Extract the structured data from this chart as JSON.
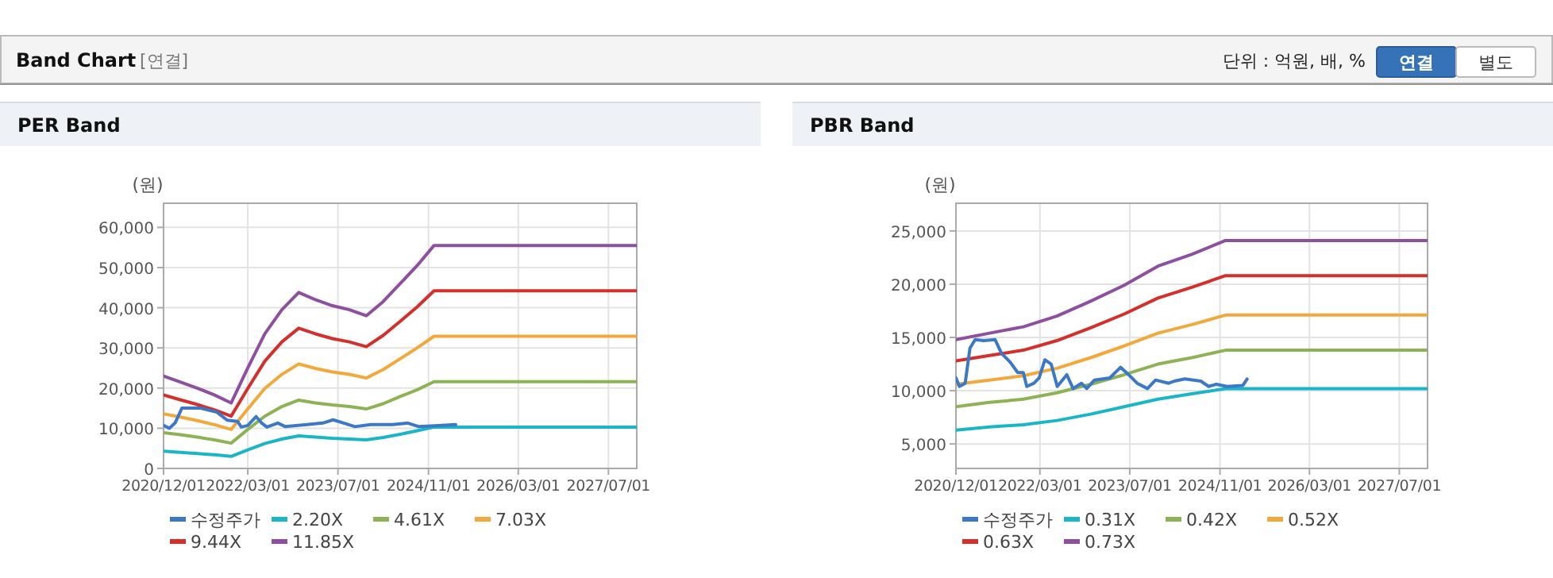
{
  "chart_data": [
    {
      "type": "other",
      "title": "Band Chart",
      "subtitle": "[연결]",
      "annotations": [
        "단위 : 억원, 배, %",
        "연결",
        "별도"
      ]
    },
    {
      "type": "line",
      "title": "PER Band",
      "ylabel": "(원)",
      "grid": true,
      "legend": "bottom",
      "marker": "none",
      "line_style": "solid",
      "xlim": [
        "2020-12-01",
        "2027-12-01"
      ],
      "xticks": [
        {
          "value": "2020-12-01",
          "label": "2020/12/01"
        },
        {
          "value": "2022-03-01",
          "label": "2022/03/01"
        },
        {
          "value": "2023-07-01",
          "label": "2023/07/01"
        },
        {
          "value": "2024-11-01",
          "label": "2024/11/01"
        },
        {
          "value": "2026-03-01",
          "label": "2026/03/01"
        },
        {
          "value": "2027-07-01",
          "label": "2027/07/01"
        }
      ],
      "ylim": [
        0,
        66000
      ],
      "yticks": [
        {
          "value": 0,
          "label": "0"
        },
        {
          "value": 10000,
          "label": "10,000"
        },
        {
          "value": 20000,
          "label": "20,000"
        },
        {
          "value": 30000,
          "label": "30,000"
        },
        {
          "value": 40000,
          "label": "40,000"
        },
        {
          "value": 50000,
          "label": "50,000"
        },
        {
          "value": 60000,
          "label": "60,000"
        }
      ],
      "x": [
        "2020-12-01",
        "2021-03-01",
        "2021-06-01",
        "2021-09-01",
        "2021-12-01",
        "2022-03-01",
        "2022-06-01",
        "2022-09-01",
        "2022-12-01",
        "2023-03-01",
        "2023-06-01",
        "2023-09-01",
        "2023-12-01",
        "2024-03-01",
        "2024-06-01",
        "2024-09-01",
        "2024-12-01",
        "2027-12-01"
      ],
      "series": [
        {
          "name": "수정주가",
          "color": "#3c78c8",
          "x": [
            "2020-12-01",
            "2021-01-01",
            "2021-02-01",
            "2021-03-10",
            "2021-06-20",
            "2021-09-15",
            "2021-11-10",
            "2022-01-05",
            "2022-01-25",
            "2022-03-01",
            "2022-04-15",
            "2022-05-15",
            "2022-06-12",
            "2022-08-10",
            "2022-09-20",
            "2023-01-15",
            "2023-04-10",
            "2023-06-05",
            "2023-08-01",
            "2023-10-01",
            "2023-12-25",
            "2024-04-20",
            "2024-07-12",
            "2024-09-10",
            "2024-12-05",
            "2025-03-28"
          ],
          "values": [
            10700,
            10000,
            11300,
            15000,
            15000,
            14000,
            12000,
            11700,
            10300,
            10700,
            12900,
            11300,
            10300,
            11300,
            10400,
            10900,
            11300,
            12100,
            11300,
            10400,
            10900,
            10900,
            11300,
            10400,
            10600,
            10900
          ]
        },
        {
          "name": "2.20X",
          "color": "#1bb5c8",
          "values": [
            4300,
            4000,
            3700,
            3400,
            3000,
            4600,
            6200,
            7300,
            8100,
            7800,
            7500,
            7300,
            7100,
            7700,
            8500,
            9400,
            10300,
            10300
          ]
        },
        {
          "name": "4.61X",
          "color": "#8db354",
          "values": [
            8900,
            8400,
            7800,
            7100,
            6300,
            9700,
            13000,
            15400,
            17000,
            16300,
            15800,
            15400,
            14800,
            16100,
            17900,
            19600,
            21600,
            21600
          ]
        },
        {
          "name": "7.03X",
          "color": "#f3a83b",
          "values": [
            13600,
            12800,
            11900,
            10900,
            9700,
            14800,
            19900,
            23400,
            26000,
            24900,
            24000,
            23400,
            22500,
            24600,
            27300,
            30000,
            32900,
            32900
          ]
        },
        {
          "name": "9.44X",
          "color": "#d42f2a",
          "values": [
            18300,
            17100,
            15900,
            14600,
            13000,
            19900,
            26700,
            31500,
            34900,
            33500,
            32300,
            31500,
            30300,
            33100,
            36600,
            40200,
            44200,
            44200
          ]
        },
        {
          "name": "11.85X",
          "color": "#8f4fa0",
          "values": [
            23000,
            21500,
            20000,
            18300,
            16300,
            25000,
            33500,
            39500,
            43800,
            42000,
            40500,
            39500,
            38000,
            41500,
            46000,
            50500,
            55500,
            55500
          ]
        }
      ]
    },
    {
      "type": "line",
      "title": "PBR Band",
      "ylabel": "(원)",
      "grid": true,
      "legend": "bottom",
      "marker": "none",
      "line_style": "solid",
      "xlim": [
        "2020-12-01",
        "2027-12-01"
      ],
      "xticks": [
        {
          "value": "2020-12-01",
          "label": "2020/12/01"
        },
        {
          "value": "2022-03-01",
          "label": "2022/03/01"
        },
        {
          "value": "2023-07-01",
          "label": "2023/07/01"
        },
        {
          "value": "2024-11-01",
          "label": "2024/11/01"
        },
        {
          "value": "2026-03-01",
          "label": "2026/03/01"
        },
        {
          "value": "2027-07-01",
          "label": "2027/07/01"
        }
      ],
      "ylim": [
        2700,
        27600
      ],
      "yticks": [
        {
          "value": 5000,
          "label": "5,000"
        },
        {
          "value": 10000,
          "label": "10,000"
        },
        {
          "value": 15000,
          "label": "15,000"
        },
        {
          "value": 20000,
          "label": "20,000"
        },
        {
          "value": 25000,
          "label": "25,000"
        }
      ],
      "x": [
        "2020-12-01",
        "2021-06-01",
        "2021-12-01",
        "2022-06-01",
        "2022-12-01",
        "2023-06-01",
        "2023-12-01",
        "2024-06-01",
        "2024-12-01",
        "2027-12-01"
      ],
      "series": [
        {
          "name": "수정주가",
          "color": "#3c78c8",
          "x": [
            "2020-12-01",
            "2020-12-20",
            "2021-01-20",
            "2021-02-15",
            "2021-03-15",
            "2021-05-01",
            "2021-07-01",
            "2021-08-05",
            "2021-09-20",
            "2021-11-01",
            "2021-12-01",
            "2021-12-20",
            "2022-01-28",
            "2022-02-25",
            "2022-03-28",
            "2022-05-01",
            "2022-06-03",
            "2022-07-25",
            "2022-08-28",
            "2022-10-12",
            "2022-11-10",
            "2022-12-22",
            "2023-03-15",
            "2023-05-12",
            "2023-06-25",
            "2023-08-10",
            "2023-10-05",
            "2023-11-18",
            "2024-01-28",
            "2024-02-28",
            "2024-04-25",
            "2024-07-20",
            "2024-09-01",
            "2024-10-12",
            "2024-12-10",
            "2025-03-05",
            "2025-03-28"
          ],
          "values": [
            11200,
            10400,
            10700,
            14000,
            14800,
            14700,
            14800,
            13500,
            12700,
            11700,
            11700,
            10400,
            10700,
            11200,
            12900,
            12500,
            10400,
            11500,
            10200,
            10700,
            10200,
            11000,
            11200,
            12200,
            11500,
            10700,
            10200,
            11000,
            10700,
            10900,
            11100,
            10900,
            10400,
            10600,
            10400,
            10500,
            11100
          ]
        },
        {
          "name": "0.31X",
          "color": "#1bb5c8",
          "values": [
            6300,
            6600,
            6800,
            7200,
            7800,
            8500,
            9200,
            9700,
            10200,
            10200
          ]
        },
        {
          "name": "0.42X",
          "color": "#8db354",
          "values": [
            8500,
            8900,
            9200,
            9800,
            10600,
            11500,
            12500,
            13100,
            13800,
            13800
          ]
        },
        {
          "name": "0.52X",
          "color": "#f3a83b",
          "values": [
            10600,
            11000,
            11400,
            12100,
            13100,
            14200,
            15400,
            16200,
            17100,
            17100
          ]
        },
        {
          "name": "0.63X",
          "color": "#d42f2a",
          "values": [
            12800,
            13300,
            13800,
            14700,
            15900,
            17200,
            18700,
            19700,
            20800,
            20800
          ]
        },
        {
          "name": "0.73X",
          "color": "#8f4fa0",
          "values": [
            14800,
            15400,
            16000,
            17000,
            18400,
            19900,
            21700,
            22800,
            24100,
            24100
          ]
        }
      ]
    }
  ]
}
